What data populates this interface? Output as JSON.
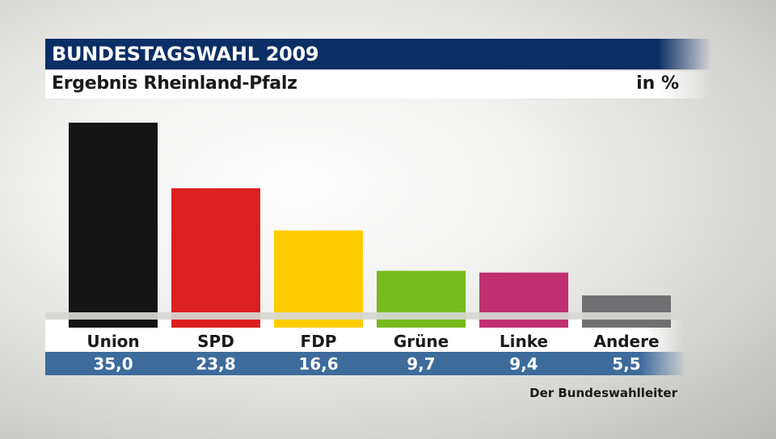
{
  "header": {
    "title": "BUNDESTAGSWAHL 2009",
    "subtitle": "Ergebnis Rheinland-Pfalz",
    "unit": "in %"
  },
  "source": "Der Bundeswahlleiter",
  "chart_data": {
    "type": "bar",
    "title": "Ergebnis Rheinland-Pfalz",
    "categories": [
      "Union",
      "SPD",
      "FDP",
      "Grüne",
      "Linke",
      "Andere"
    ],
    "values": [
      35.0,
      23.8,
      16.6,
      9.7,
      9.4,
      5.5
    ],
    "value_labels": [
      "35,0",
      "23,8",
      "16,6",
      "9,7",
      "9,4",
      "5,5"
    ],
    "colors": [
      "#141414",
      "#dc1f1f",
      "#ffcc00",
      "#78bb1e",
      "#c0306f",
      "#707072"
    ],
    "ylabel": "in %",
    "ylim": [
      0,
      35
    ]
  }
}
